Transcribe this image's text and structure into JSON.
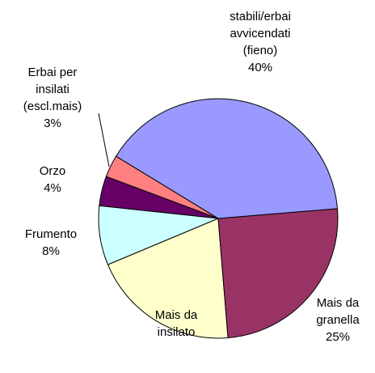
{
  "chart_data": {
    "type": "pie",
    "categories": [
      "stabili/erbai\navvicendati\n(fieno)",
      "Mais da\ngranella",
      "Mais da\ninsilato",
      "Frumento",
      "Orzo",
      "Erbai per\ninsilati\n(escl.mais)"
    ],
    "values": [
      40,
      25,
      20,
      8,
      4,
      3
    ],
    "value_labels": [
      "40%",
      "25%",
      null,
      "8%",
      "4%",
      "3%"
    ],
    "colors": [
      "#9999ff",
      "#993366",
      "#ffffcc",
      "#ccffff",
      "#660066",
      "#ff8080"
    ]
  }
}
